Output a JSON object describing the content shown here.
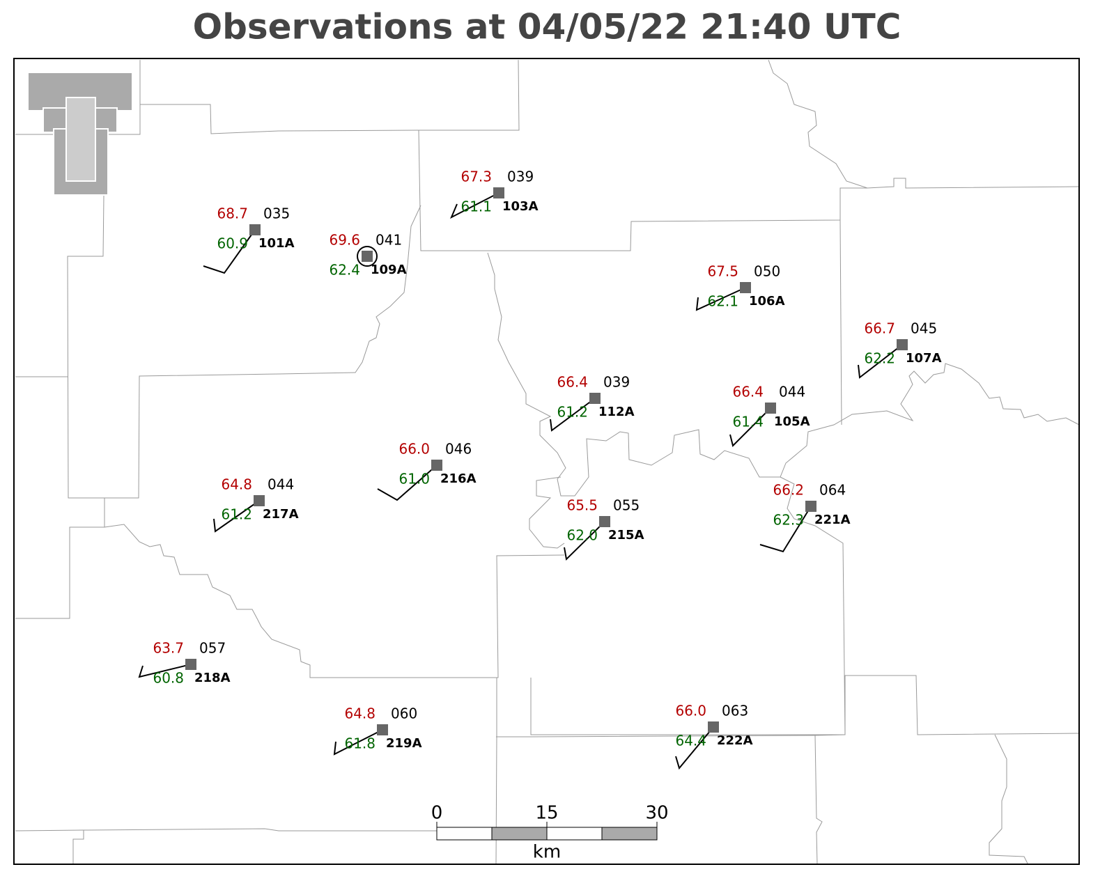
{
  "title": "Observations at 04/05/22 21:40 UTC",
  "stations": [
    {
      "id": "101A",
      "temperature": "68.7",
      "dewpoint": "60.9",
      "pressure": "035"
    },
    {
      "id": "109A",
      "temperature": "69.6",
      "dewpoint": "62.4",
      "pressure": "041"
    },
    {
      "id": "103A",
      "temperature": "67.3",
      "dewpoint": "61.1",
      "pressure": "039"
    },
    {
      "id": "106A",
      "temperature": "67.5",
      "dewpoint": "62.1",
      "pressure": "050"
    },
    {
      "id": "107A",
      "temperature": "66.7",
      "dewpoint": "62.2",
      "pressure": "045"
    },
    {
      "id": "112A",
      "temperature": "66.4",
      "dewpoint": "61.2",
      "pressure": "039"
    },
    {
      "id": "105A",
      "temperature": "66.4",
      "dewpoint": "61.4",
      "pressure": "044"
    },
    {
      "id": "216A",
      "temperature": "66.0",
      "dewpoint": "61.0",
      "pressure": "046"
    },
    {
      "id": "217A",
      "temperature": "64.8",
      "dewpoint": "61.2",
      "pressure": "044"
    },
    {
      "id": "215A",
      "temperature": "65.5",
      "dewpoint": "62.0",
      "pressure": "055"
    },
    {
      "id": "221A",
      "temperature": "66.2",
      "dewpoint": "62.3",
      "pressure": "064"
    },
    {
      "id": "218A",
      "temperature": "63.7",
      "dewpoint": "60.8",
      "pressure": "057"
    },
    {
      "id": "219A",
      "temperature": "64.8",
      "dewpoint": "61.8",
      "pressure": "060"
    },
    {
      "id": "222A",
      "temperature": "66.0",
      "dewpoint": "64.4",
      "pressure": "063"
    }
  ],
  "scale_bar": {
    "ticks": [
      "0",
      "15",
      "30"
    ],
    "unit": "km"
  }
}
